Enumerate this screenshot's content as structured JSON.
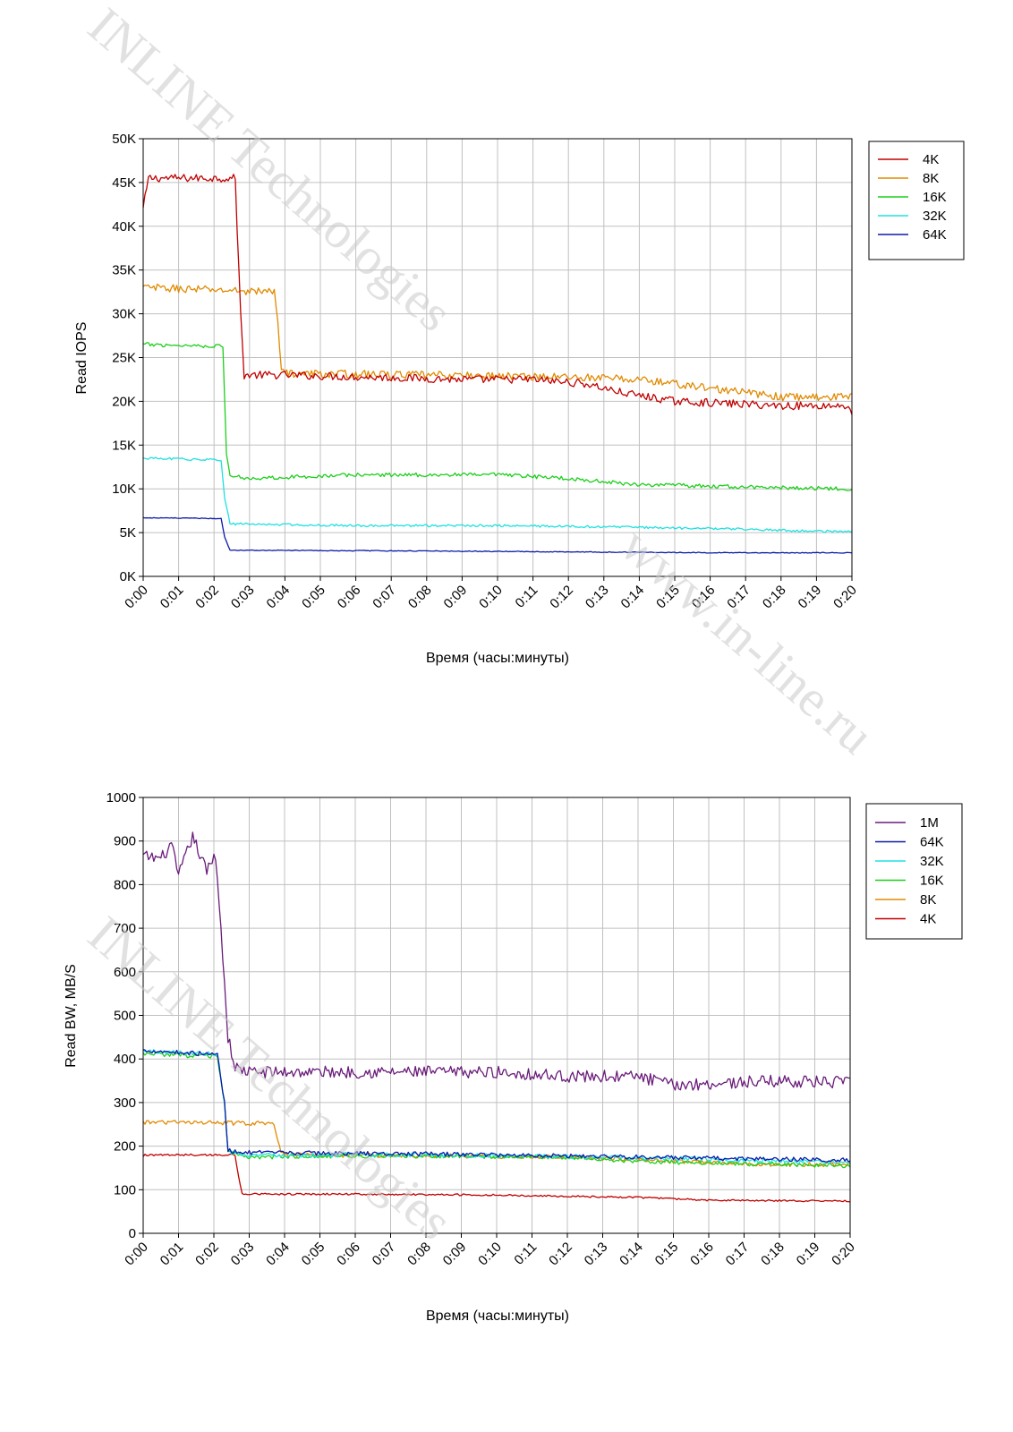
{
  "watermarks": [
    "INLINE Technologies",
    "www.in-line.ru",
    "INLINE Technologies"
  ],
  "chart_data": [
    {
      "type": "line",
      "title": "",
      "xlabel": "Время (часы:минуты)",
      "ylabel": "Read IOPS",
      "xlim": [
        0,
        20
      ],
      "ylim": [
        0,
        50000
      ],
      "x_ticks": [
        "0:00",
        "0:01",
        "0:02",
        "0:03",
        "0:04",
        "0:05",
        "0:06",
        "0:07",
        "0:08",
        "0:09",
        "0:10",
        "0:11",
        "0:12",
        "0:13",
        "0:14",
        "0:15",
        "0:16",
        "0:17",
        "0:18",
        "0:19",
        "0:20"
      ],
      "y_ticks": [
        "0K",
        "5K",
        "10K",
        "15K",
        "20K",
        "25K",
        "30K",
        "35K",
        "40K",
        "45K",
        "50K"
      ],
      "y_tick_values": [
        0,
        5000,
        10000,
        15000,
        20000,
        25000,
        30000,
        35000,
        40000,
        45000,
        50000
      ],
      "grid": true,
      "legend_position": "top-right",
      "series": [
        {
          "name": "4K",
          "color": "#c00000",
          "noise": 450,
          "points": [
            [
              0,
              42000
            ],
            [
              0.15,
              45500
            ],
            [
              2.6,
              45500
            ],
            [
              2.65,
              40000
            ],
            [
              2.75,
              30000
            ],
            [
              2.85,
              23000
            ],
            [
              4,
              23000
            ],
            [
              9,
              22500
            ],
            [
              11,
              22500
            ],
            [
              12.5,
              22000
            ],
            [
              13.5,
              21000
            ],
            [
              15,
              20000
            ],
            [
              18,
              19500
            ],
            [
              19.9,
              19500
            ],
            [
              20,
              18500
            ]
          ]
        },
        {
          "name": "8K",
          "color": "#e08a00",
          "noise": 450,
          "points": [
            [
              0,
              33000
            ],
            [
              3.7,
              32500
            ],
            [
              3.8,
              29000
            ],
            [
              3.9,
              24000
            ],
            [
              4,
              23200
            ],
            [
              8,
              23000
            ],
            [
              12,
              22800
            ],
            [
              14,
              22500
            ],
            [
              16,
              21500
            ],
            [
              18,
              20500
            ],
            [
              20,
              20500
            ]
          ]
        },
        {
          "name": "16K",
          "color": "#1ccf1c",
          "noise": 220,
          "points": [
            [
              0,
              26500
            ],
            [
              2.25,
              26300
            ],
            [
              2.3,
              20000
            ],
            [
              2.35,
              14000
            ],
            [
              2.45,
              11500
            ],
            [
              3,
              11200
            ],
            [
              6,
              11600
            ],
            [
              10,
              11600
            ],
            [
              12,
              11200
            ],
            [
              13,
              10800
            ],
            [
              14,
              10500
            ],
            [
              17,
              10200
            ],
            [
              20,
              10000
            ]
          ]
        },
        {
          "name": "32K",
          "color": "#20e0e0",
          "noise": 130,
          "points": [
            [
              0,
              13500
            ],
            [
              2.2,
              13300
            ],
            [
              2.3,
              9000
            ],
            [
              2.45,
              6000
            ],
            [
              6,
              5800
            ],
            [
              10,
              5800
            ],
            [
              14,
              5600
            ],
            [
              17,
              5400
            ],
            [
              18.5,
              5200
            ],
            [
              20,
              5100
            ]
          ]
        },
        {
          "name": "64K",
          "color": "#0b1aa8",
          "noise": 45,
          "points": [
            [
              0,
              6700
            ],
            [
              2.2,
              6600
            ],
            [
              2.3,
              4500
            ],
            [
              2.45,
              3000
            ],
            [
              8,
              2900
            ],
            [
              12,
              2800
            ],
            [
              16,
              2700
            ],
            [
              20,
              2700
            ]
          ]
        }
      ]
    },
    {
      "type": "line",
      "title": "",
      "xlabel": "Время (часы:минуты)",
      "ylabel": "Read BW, MB/S",
      "xlim": [
        0,
        20
      ],
      "ylim": [
        0,
        1000
      ],
      "x_ticks": [
        "0:00",
        "0:01",
        "0:02",
        "0:03",
        "0:04",
        "0:05",
        "0:06",
        "0:07",
        "0:08",
        "0:09",
        "0:10",
        "0:11",
        "0:12",
        "0:13",
        "0:14",
        "0:15",
        "0:16",
        "0:17",
        "0:18",
        "0:19",
        "0:20"
      ],
      "y_ticks": [
        "0",
        "100",
        "200",
        "300",
        "400",
        "500",
        "600",
        "700",
        "800",
        "900",
        "1000"
      ],
      "y_tick_values": [
        0,
        100,
        200,
        300,
        400,
        500,
        600,
        700,
        800,
        900,
        1000
      ],
      "grid": true,
      "legend_position": "top-right",
      "series": [
        {
          "name": "1M",
          "color": "#6a1b7a",
          "noise": 14,
          "points": [
            [
              0,
              865
            ],
            [
              0.5,
              860
            ],
            [
              0.8,
              890
            ],
            [
              1.0,
              820
            ],
            [
              1.4,
              910
            ],
            [
              1.8,
              830
            ],
            [
              2.05,
              870
            ],
            [
              2.2,
              700
            ],
            [
              2.4,
              450
            ],
            [
              2.6,
              380
            ],
            [
              3,
              370
            ],
            [
              6,
              370
            ],
            [
              10,
              370
            ],
            [
              12,
              360
            ],
            [
              14,
              360
            ],
            [
              15,
              340
            ],
            [
              18,
              350
            ],
            [
              20,
              345
            ]
          ]
        },
        {
          "name": "64K",
          "color": "#0b1aa8",
          "noise": 5,
          "points": [
            [
              0,
              420
            ],
            [
              2.1,
              410
            ],
            [
              2.3,
              300
            ],
            [
              2.4,
              190
            ],
            [
              3,
              185
            ],
            [
              8,
              182
            ],
            [
              12,
              178
            ],
            [
              16,
              172
            ],
            [
              20,
              168
            ]
          ]
        },
        {
          "name": "32K",
          "color": "#20e0e0",
          "noise": 5,
          "points": [
            [
              0,
              418
            ],
            [
              2.1,
              412
            ],
            [
              2.3,
              300
            ],
            [
              2.4,
              188
            ],
            [
              3,
              180
            ],
            [
              8,
              180
            ],
            [
              12,
              176
            ],
            [
              16,
              170
            ],
            [
              20,
              162
            ]
          ]
        },
        {
          "name": "16K",
          "color": "#1ccf1c",
          "noise": 5,
          "points": [
            [
              0,
              412
            ],
            [
              2.1,
              405
            ],
            [
              2.3,
              300
            ],
            [
              2.4,
              185
            ],
            [
              3,
              175
            ],
            [
              8,
              178
            ],
            [
              12,
              175
            ],
            [
              14,
              165
            ],
            [
              18,
              158
            ],
            [
              20,
              155
            ]
          ]
        },
        {
          "name": "8K",
          "color": "#e08a00",
          "noise": 5,
          "points": [
            [
              0,
              255
            ],
            [
              3.7,
              252
            ],
            [
              3.8,
              220
            ],
            [
              3.9,
              185
            ],
            [
              4,
              180
            ],
            [
              8,
              178
            ],
            [
              12,
              175
            ],
            [
              15,
              165
            ],
            [
              18,
              158
            ],
            [
              20,
              158
            ]
          ]
        },
        {
          "name": "4K",
          "color": "#c00000",
          "noise": 2,
          "points": [
            [
              0,
              175
            ],
            [
              0.05,
              180
            ],
            [
              2.6,
              180
            ],
            [
              2.7,
              130
            ],
            [
              2.8,
              90
            ],
            [
              6,
              90
            ],
            [
              10,
              88
            ],
            [
              14,
              82
            ],
            [
              16,
              76
            ],
            [
              20,
              74
            ]
          ]
        }
      ]
    }
  ]
}
